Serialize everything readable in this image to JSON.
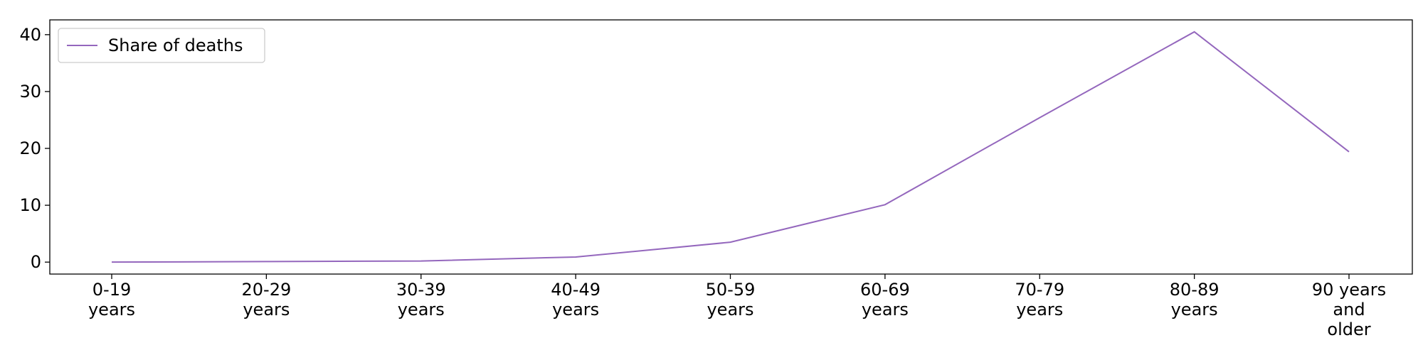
{
  "chart_data": {
    "type": "line",
    "categories": [
      "0-19 years",
      "20-29 years",
      "30-39 years",
      "40-49 years",
      "50-59 years",
      "60-69 years",
      "70-79 years",
      "80-89 years",
      "90 years and older"
    ],
    "category_lines": [
      [
        "0-19",
        "years"
      ],
      [
        "20-29",
        "years"
      ],
      [
        "30-39",
        "years"
      ],
      [
        "40-49",
        "years"
      ],
      [
        "50-59",
        "years"
      ],
      [
        "60-69",
        "years"
      ],
      [
        "70-79",
        "years"
      ],
      [
        "80-89",
        "years"
      ],
      [
        "90 years",
        "and",
        "older"
      ]
    ],
    "series": [
      {
        "name": "Share of deaths",
        "values": [
          0.0,
          0.1,
          0.2,
          0.9,
          3.5,
          10.1,
          25.4,
          40.5,
          19.4
        ],
        "color": "#9467bd"
      }
    ],
    "title": "",
    "xlabel": "",
    "ylabel": "",
    "ylim": [
      -2.1,
      42.6
    ],
    "yticks": [
      0,
      10,
      20,
      30,
      40
    ],
    "grid": false,
    "legend_position": "upper-left"
  }
}
